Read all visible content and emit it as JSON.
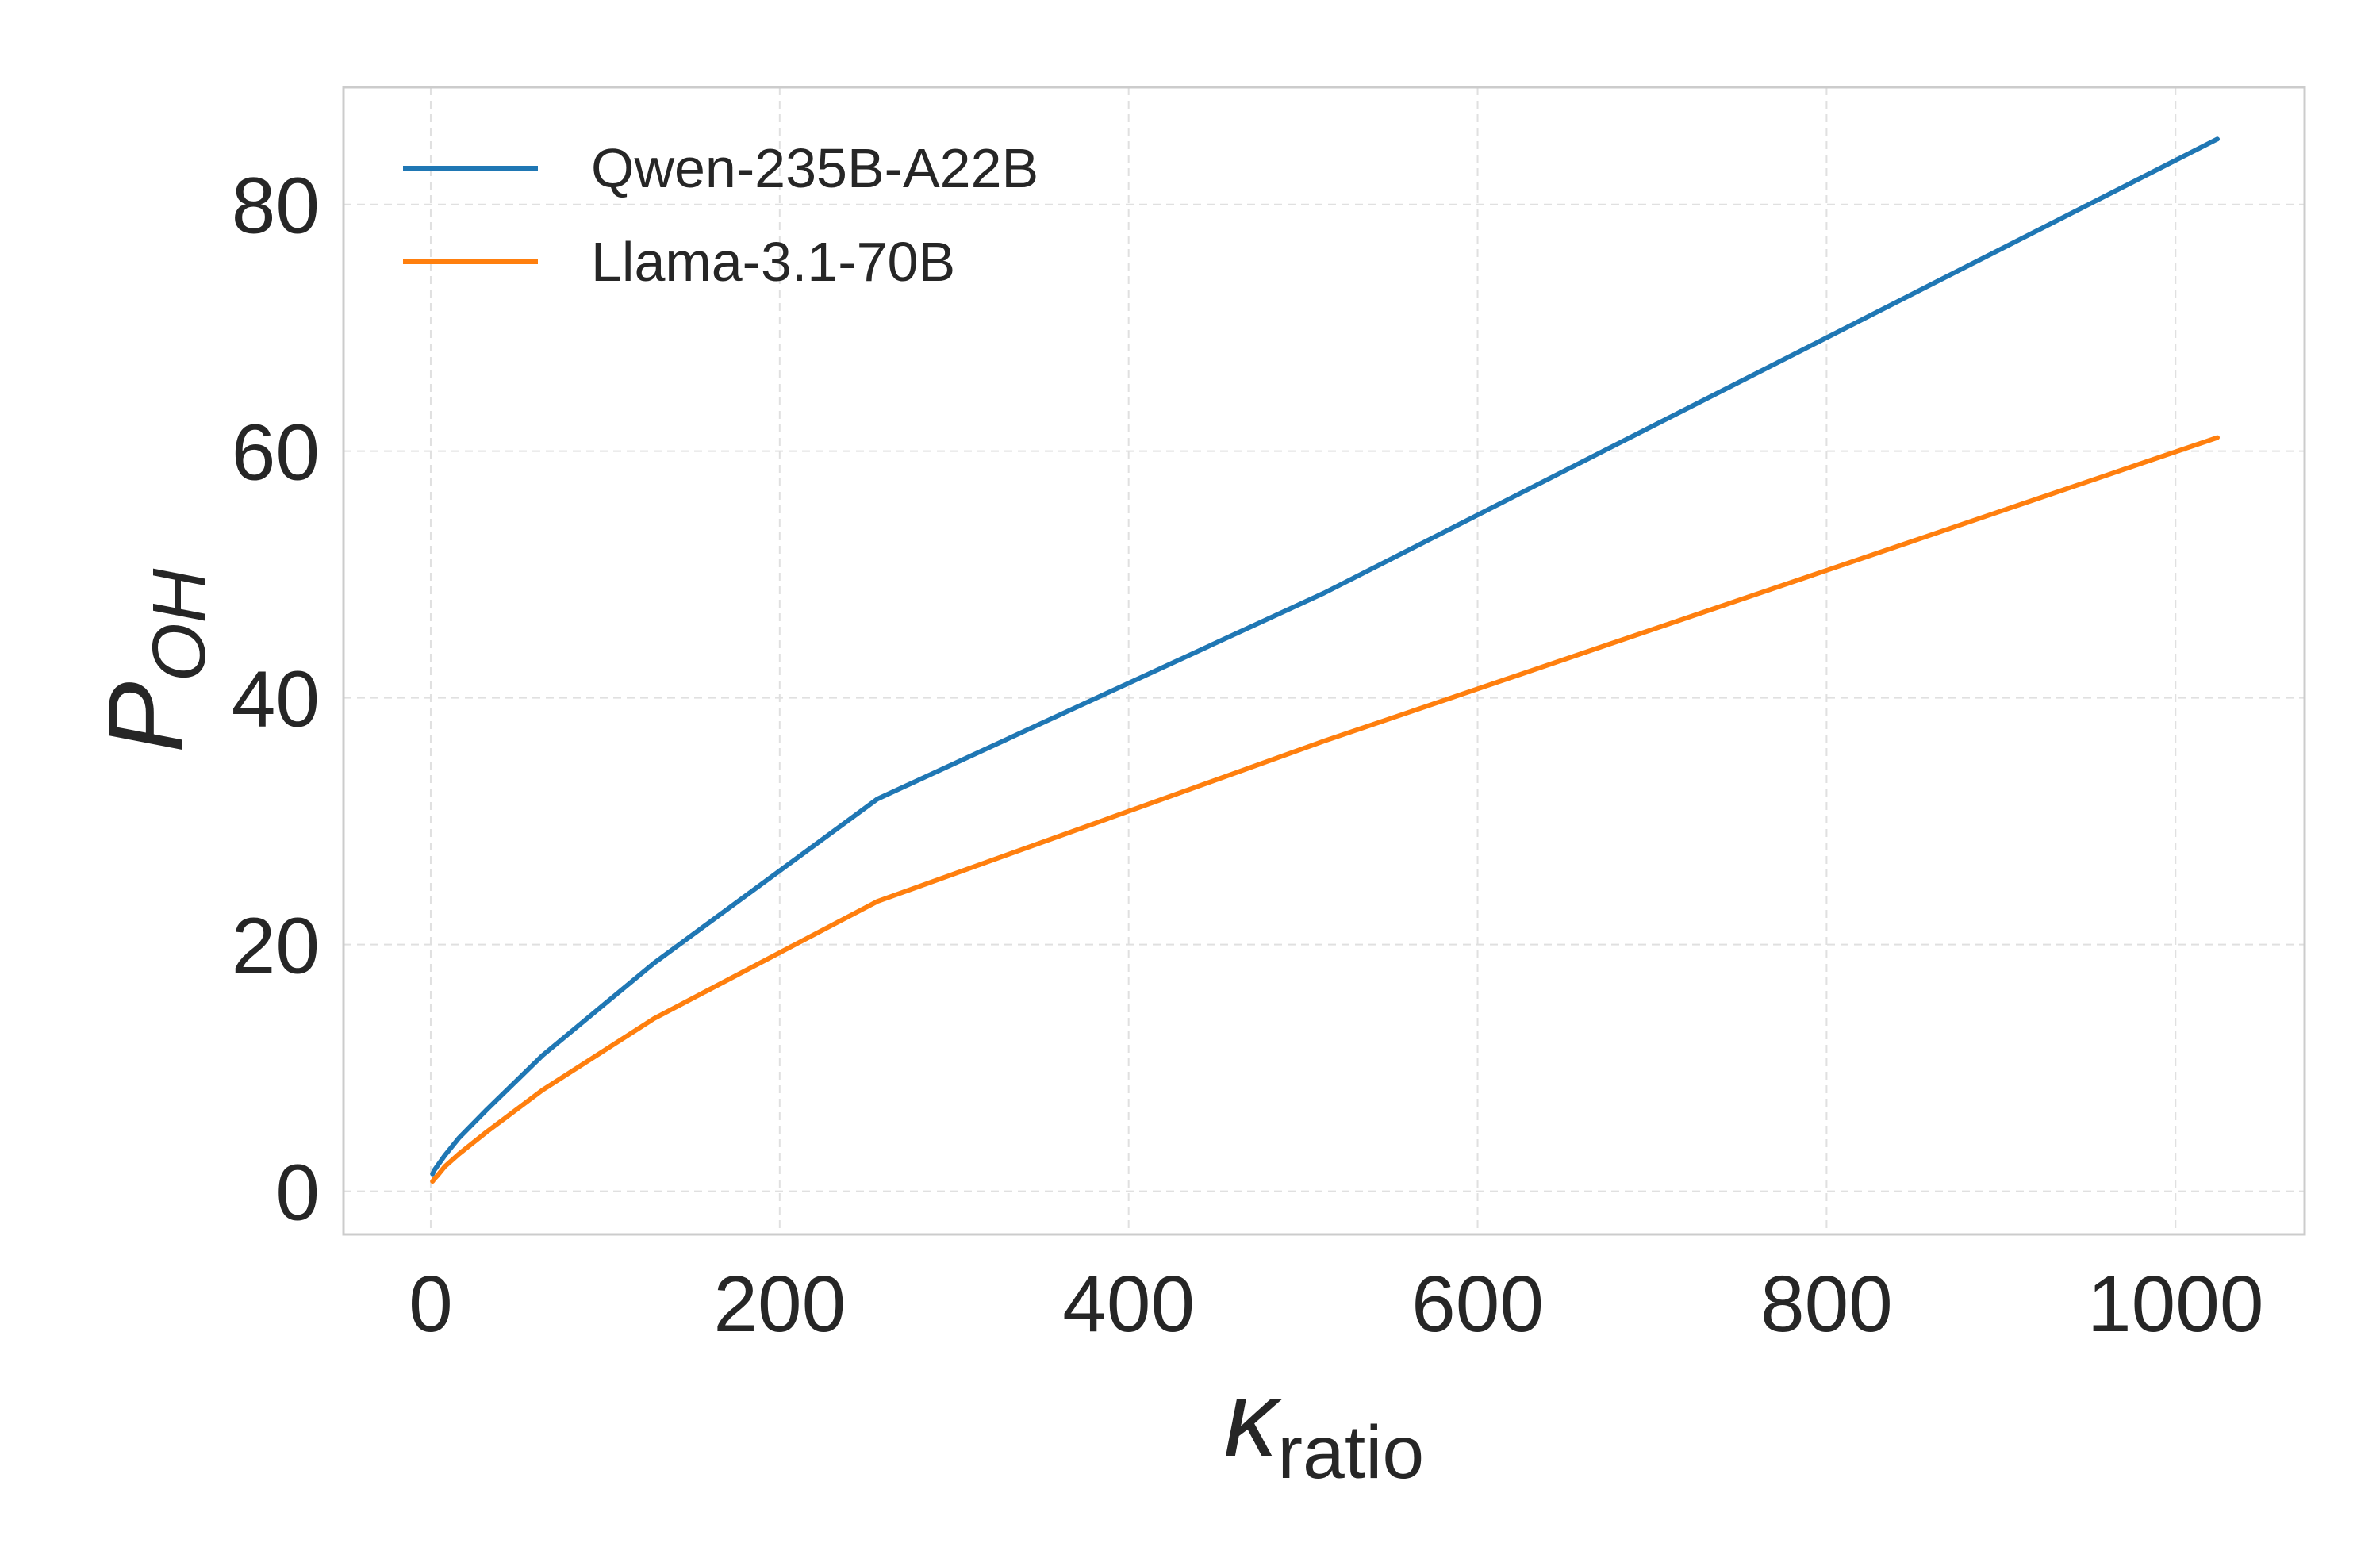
{
  "chart_data": {
    "type": "line",
    "xlabel": {
      "main": "κ",
      "sub": "ratio"
    },
    "ylabel": {
      "main": "P",
      "sub": "OH"
    },
    "xlim": [
      -50,
      1074
    ],
    "ylim": [
      -3.5,
      89.5
    ],
    "xticks": [
      0,
      200,
      400,
      600,
      800,
      1000
    ],
    "yticks": [
      0,
      20,
      40,
      60,
      80
    ],
    "grid": true,
    "legend_position": "top-left",
    "series": [
      {
        "name": "Qwen-235B-A22B",
        "color": "#1f77b4",
        "x": [
          1,
          2,
          4,
          8,
          16,
          32,
          64,
          128,
          256,
          512,
          1024
        ],
        "y": [
          1.4,
          1.7,
          2.1,
          2.9,
          4.3,
          6.6,
          11.0,
          18.5,
          31.8,
          48.5,
          85.3
        ]
      },
      {
        "name": "Llama-3.1-70B",
        "color": "#ff7f0e",
        "x": [
          1,
          2,
          4,
          8,
          16,
          32,
          64,
          128,
          256,
          512,
          1024
        ],
        "y": [
          0.8,
          1.0,
          1.3,
          2.0,
          3.0,
          4.8,
          8.2,
          14.0,
          23.5,
          36.5,
          61.1
        ]
      }
    ]
  }
}
